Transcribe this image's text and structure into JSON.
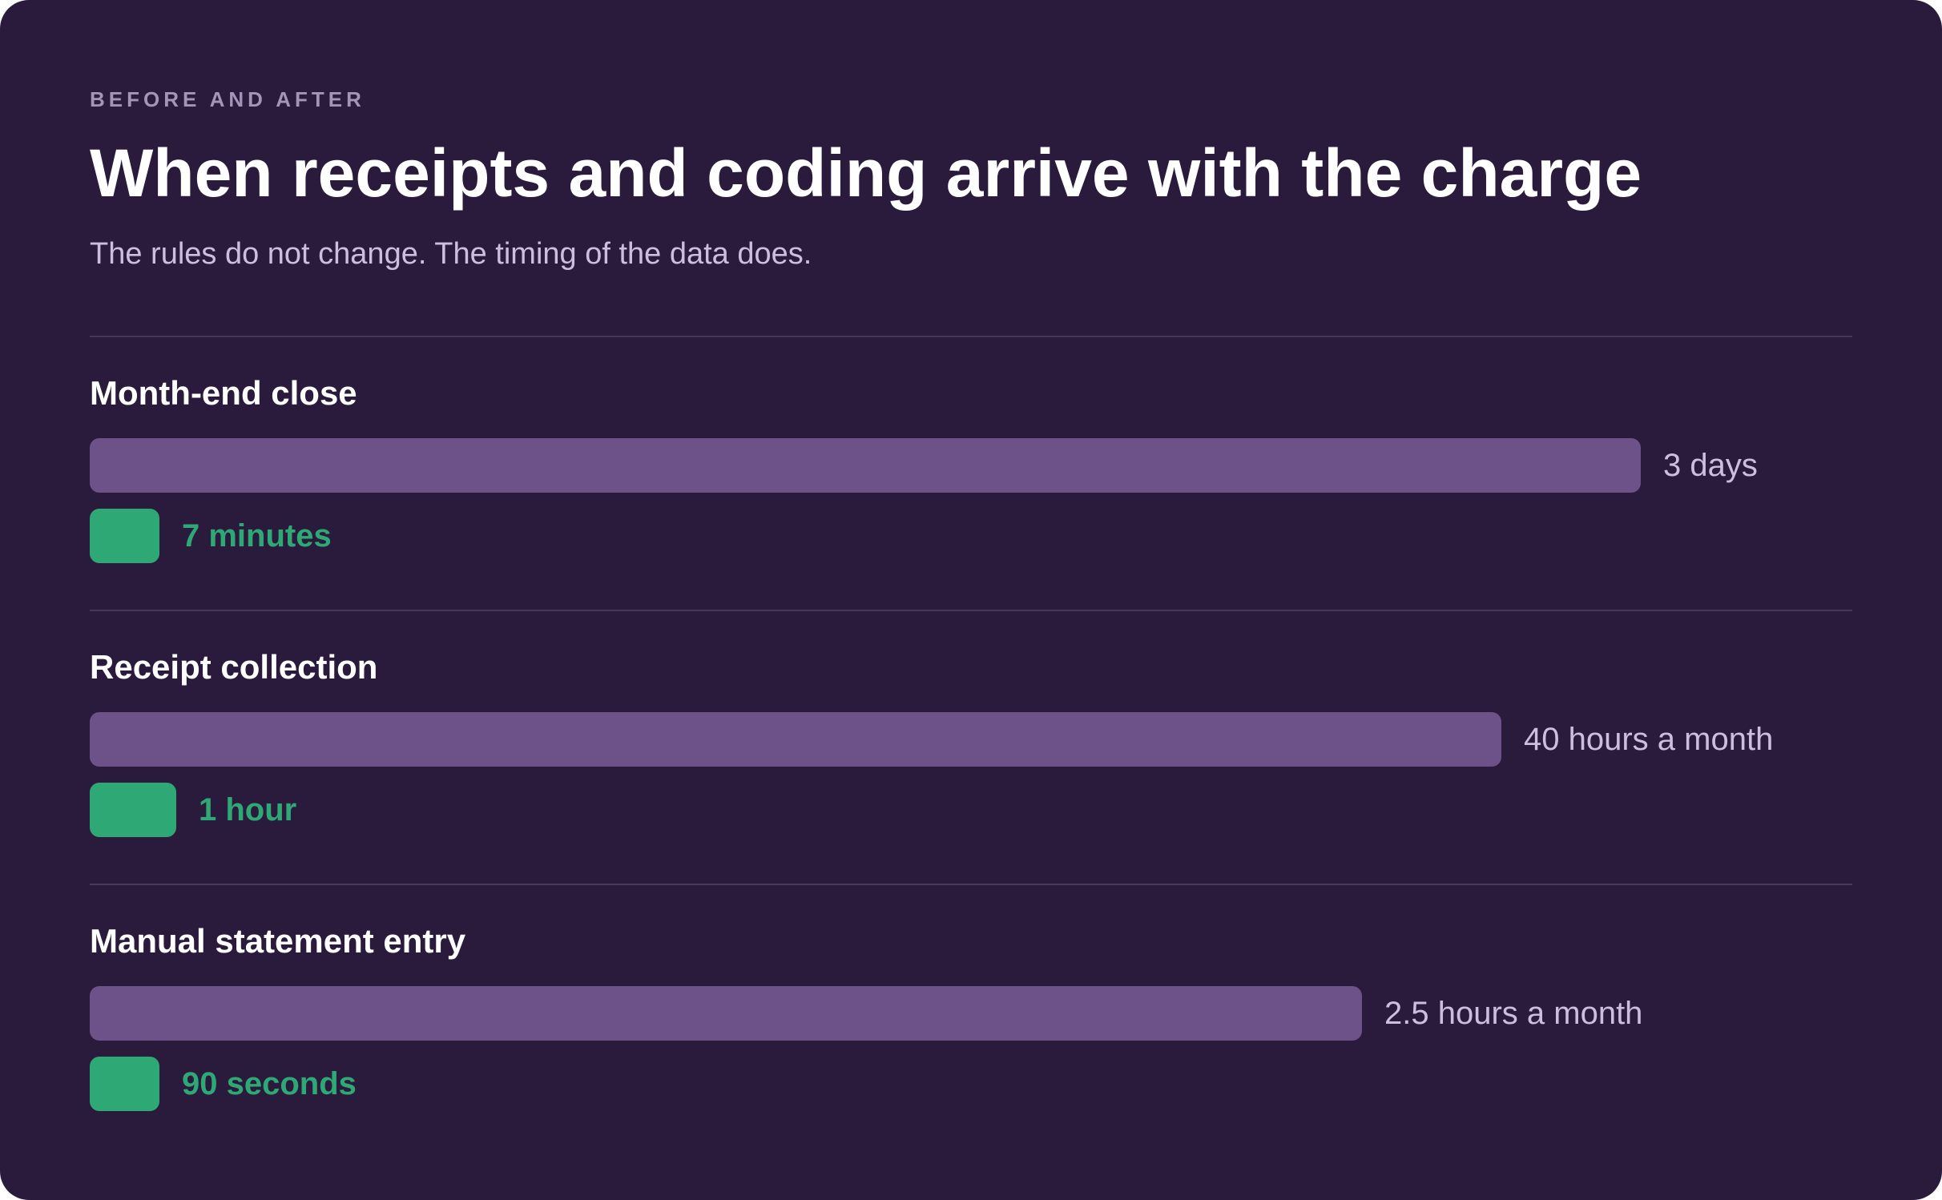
{
  "header": {
    "eyebrow": "BEFORE AND AFTER",
    "title": "When receipts and coding arrive with the charge",
    "subtitle": "The rules do not change. The timing of the data does."
  },
  "colors": {
    "background": "#2a1b3d",
    "before_bar": "#6d5189",
    "after_bar": "#2ea874",
    "divider": "#46385c"
  },
  "chart_data": {
    "type": "bar",
    "orientation": "horizontal",
    "title": "When receipts and coding arrive with the charge",
    "subtitle": "The rules do not change. The timing of the data does.",
    "categories": [
      "Month-end close",
      "Receipt collection",
      "Manual statement entry"
    ],
    "series": [
      {
        "values": [
          1.0,
          0.91,
          0.82
        ],
        "labels": [
          "3 days",
          "40 hours a month",
          "2.5 hours a month"
        ],
        "color": "#6d5189"
      },
      {
        "values": [
          0.045,
          0.056,
          0.045
        ],
        "labels": [
          "7 minutes",
          "1 hour",
          "90 seconds"
        ],
        "color": "#2ea874"
      }
    ]
  }
}
